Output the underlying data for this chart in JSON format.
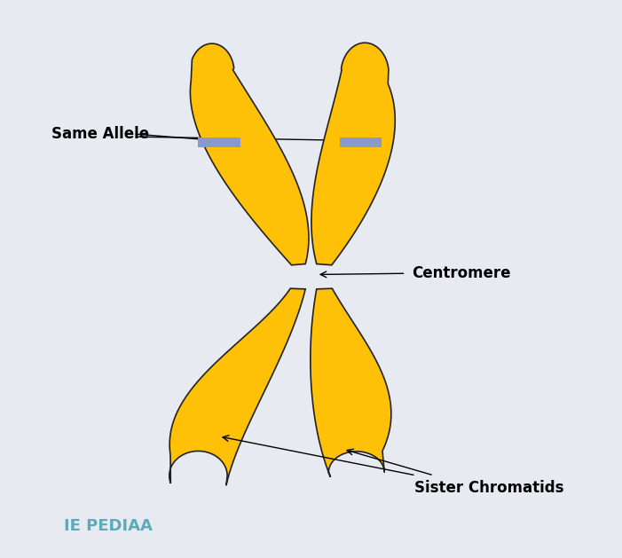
{
  "background_color": "#E8EAF2",
  "chromatid_color": "#FFC107",
  "chromatid_edge_color": "#222222",
  "allele_band_color": "#8899CC",
  "label_same_allele": "Same Allele",
  "label_centromere": "Centromere",
  "label_sister": "Sister Chromatids",
  "label_pediaa": "IE PEDIAA",
  "pediaa_color": "#5BABB8",
  "text_color": "#000000",
  "label_fontsize": 12,
  "pediaa_fontsize": 13,
  "fig_w": 7.01,
  "fig_h": 6.29,
  "dpi": 100
}
